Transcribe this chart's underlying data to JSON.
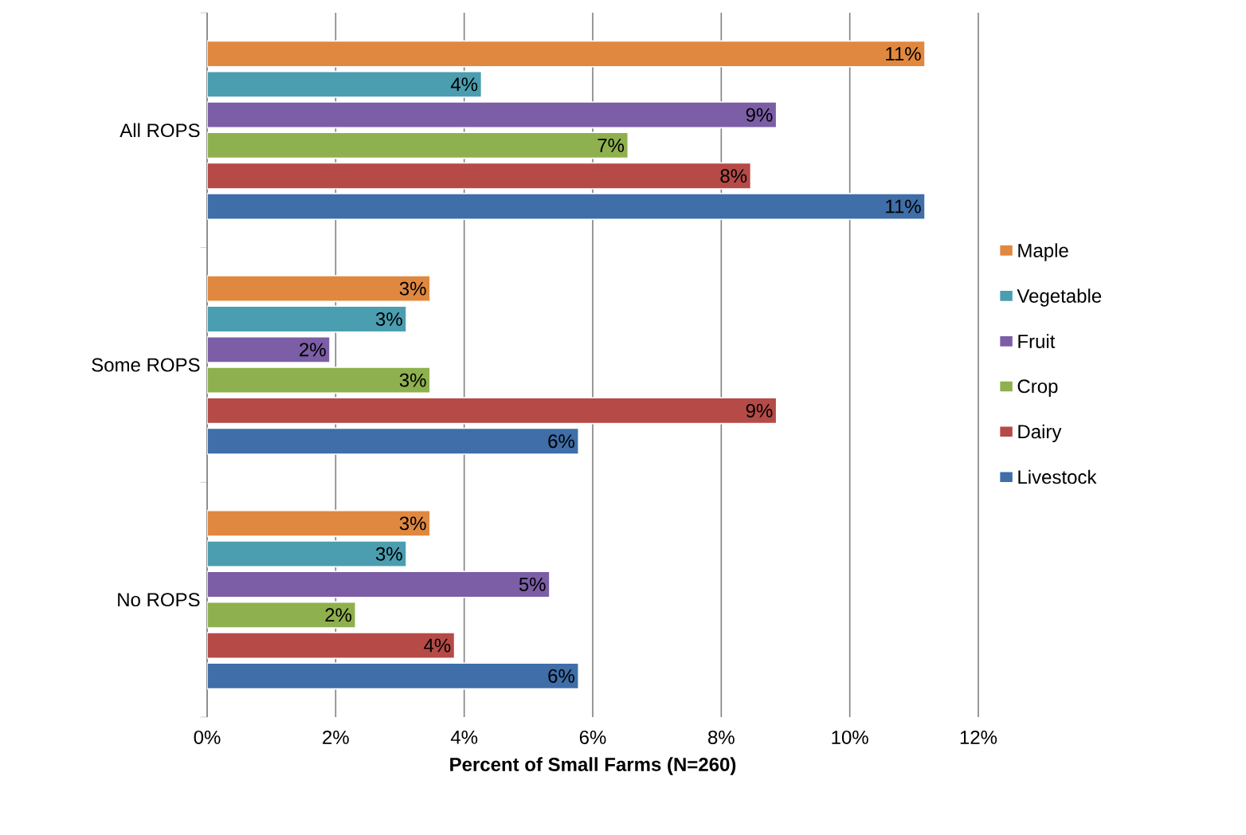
{
  "chart_data": {
    "type": "bar",
    "orientation": "horizontal",
    "categories": [
      "All ROPS",
      "Some ROPS",
      "No ROPS"
    ],
    "series": [
      {
        "name": "Maple",
        "color": "#e0883f",
        "values": [
          11.17,
          3.47,
          3.47
        ],
        "value_labels": [
          "11%",
          "3%",
          "3%"
        ]
      },
      {
        "name": "Vegetable",
        "color": "#4a9eb0",
        "values": [
          4.27,
          3.1,
          3.1
        ],
        "value_labels": [
          "4%",
          "3%",
          "3%"
        ]
      },
      {
        "name": "Fruit",
        "color": "#7b5ea6",
        "values": [
          8.86,
          1.91,
          5.33
        ],
        "value_labels": [
          "9%",
          "2%",
          "5%"
        ]
      },
      {
        "name": "Crop",
        "color": "#8fb04e",
        "values": [
          6.55,
          3.47,
          2.31
        ],
        "value_labels": [
          "7%",
          "3%",
          "2%"
        ]
      },
      {
        "name": "Dairy",
        "color": "#b54a47",
        "values": [
          8.46,
          8.86,
          3.85
        ],
        "value_labels": [
          "8%",
          "9%",
          "4%"
        ]
      },
      {
        "name": "Livestock",
        "color": "#3f6ea8",
        "values": [
          11.17,
          5.78,
          5.78
        ],
        "value_labels": [
          "11%",
          "6%",
          "6%"
        ]
      }
    ],
    "xlim": [
      0,
      12
    ],
    "xticks": [
      {
        "value": 0,
        "label": "0%"
      },
      {
        "value": 2,
        "label": "2%"
      },
      {
        "value": 4,
        "label": "4%"
      },
      {
        "value": 6,
        "label": "6%"
      },
      {
        "value": 8,
        "label": "8%"
      },
      {
        "value": 10,
        "label": "10%"
      },
      {
        "value": 12,
        "label": "12%"
      }
    ],
    "xlabel": "Percent of Small Farms (N=260)",
    "grid": "x",
    "legend": "right"
  }
}
